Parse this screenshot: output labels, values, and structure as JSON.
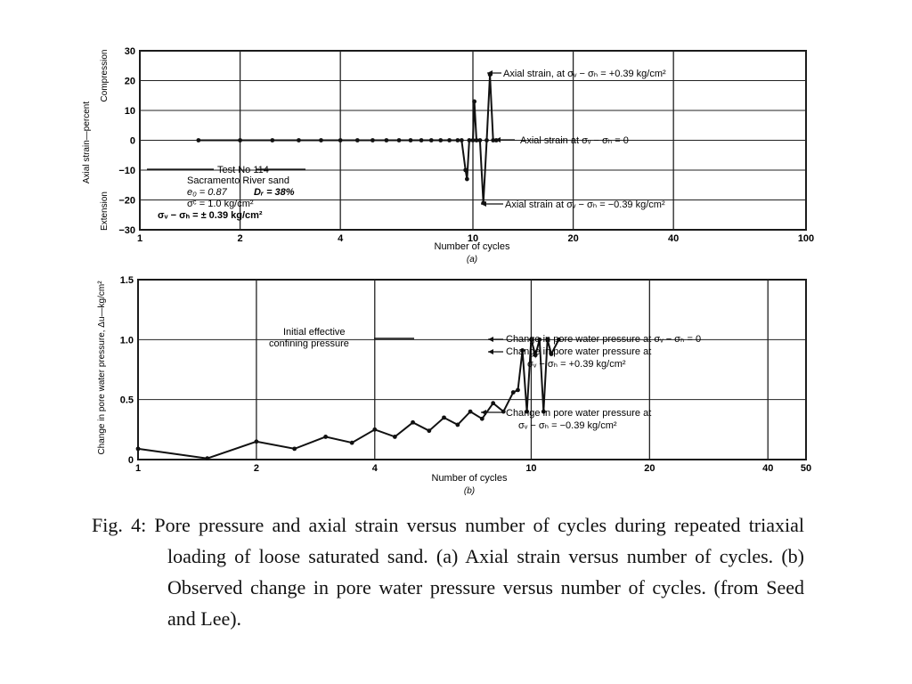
{
  "chart_data": [
    {
      "type": "scatter",
      "panel_label": "(a)",
      "xlabel": "Number of cycles",
      "ylabel": "Axial strain—percent",
      "ylabel_upper": "Compression",
      "ylabel_lower": "Extension",
      "x_scale": "log",
      "xlim": [
        1,
        100
      ],
      "ylim": [
        -30,
        30
      ],
      "x_ticks": [
        1,
        2,
        4,
        10,
        20,
        40,
        100
      ],
      "y_ticks": [
        30,
        20,
        10,
        0,
        -10,
        -20,
        -30
      ],
      "y_tick_labels": [
        "30",
        "20",
        "10",
        "0",
        "−10",
        "−20",
        "−30"
      ],
      "grid": true,
      "series": [
        {
          "name": "",
          "points": [
            [
              1.5,
              0
            ],
            [
              2,
              0
            ],
            [
              2.5,
              0
            ],
            [
              3,
              0
            ],
            [
              3.5,
              0
            ],
            [
              4,
              0
            ],
            [
              4.5,
              0
            ],
            [
              5,
              0
            ],
            [
              5.5,
              0
            ],
            [
              6,
              0
            ],
            [
              6.5,
              0
            ],
            [
              7,
              0
            ],
            [
              7.5,
              0
            ],
            [
              8,
              0
            ],
            [
              8.5,
              0
            ],
            [
              9,
              0
            ],
            [
              9.25,
              0
            ],
            [
              9.5,
              -10
            ],
            [
              9.6,
              -13
            ],
            [
              9.75,
              0
            ],
            [
              10,
              0
            ],
            [
              10.1,
              13
            ],
            [
              10.25,
              0
            ],
            [
              10.5,
              0
            ],
            [
              10.75,
              -21
            ],
            [
              11,
              0
            ],
            [
              11.25,
              22
            ],
            [
              11.5,
              0
            ],
            [
              11.75,
              0
            ]
          ]
        }
      ],
      "test_info": {
        "line1": "Test No 114",
        "line2": "Sacramento River sand",
        "line3a": "e₀ = 0.87",
        "line3b": "Dᵣ = 38%",
        "line4": "σ̄ᶜ = 1.0 kg/cm²",
        "line5": "σᵥ − σₕ = ± 0.39 kg/cm²"
      },
      "annotations": {
        "upper": "Axial strain, at σᵥ − σₕ = +0.39 kg/cm²",
        "middle": "Axial strain at σᵥ − σₕ = 0",
        "lower": "Axial strain at σᵥ − σₕ = −0.39 kg/cm²"
      }
    },
    {
      "type": "line",
      "panel_label": "(b)",
      "xlabel": "Number of cycles",
      "ylabel": "Change in pore water pressure, Δu—kg/cm²",
      "x_scale": "log",
      "xlim": [
        1,
        50
      ],
      "ylim": [
        0,
        1.5
      ],
      "x_ticks": [
        1,
        2,
        4,
        10,
        20,
        40,
        50
      ],
      "y_ticks": [
        0,
        0.5,
        1.0,
        1.5
      ],
      "y_tick_labels": [
        "0",
        "0.5",
        "1.0",
        "1.5"
      ],
      "grid": true,
      "series": [
        {
          "name": "",
          "points": [
            [
              1,
              0.09
            ],
            [
              1.5,
              0.01
            ],
            [
              2,
              0.15
            ],
            [
              2.5,
              0.09
            ],
            [
              3,
              0.19
            ],
            [
              3.5,
              0.14
            ],
            [
              4,
              0.25
            ],
            [
              4.5,
              0.19
            ],
            [
              5,
              0.31
            ],
            [
              5.5,
              0.24
            ],
            [
              6,
              0.35
            ],
            [
              6.5,
              0.29
            ],
            [
              7,
              0.4
            ],
            [
              7.5,
              0.34
            ],
            [
              8,
              0.47
            ],
            [
              8.5,
              0.4
            ],
            [
              9,
              0.56
            ],
            [
              9.25,
              0.58
            ],
            [
              9.5,
              0.91
            ],
            [
              9.75,
              0.4
            ],
            [
              10,
              1.0
            ],
            [
              10.25,
              0.87
            ],
            [
              10.5,
              1.0
            ],
            [
              10.75,
              0.4
            ],
            [
              11,
              1.0
            ],
            [
              11.25,
              0.88
            ],
            [
              11.75,
              1.0
            ]
          ]
        }
      ],
      "annotations": {
        "left_line1": "Initial effective",
        "left_line2": "confining pressure",
        "r1": "Change in pore water pressure at σᵥ − σₕ = 0",
        "r2a": "Change in pore water pressure at",
        "r2b": "σᵥ − σₕ = +0.39 kg/cm²",
        "r3a": "Change in pore water pressure at",
        "r3b": "σᵥ − σₕ = −0.39 kg/cm²"
      }
    }
  ],
  "caption": {
    "text": "Fig. 4: Pore pressure and axial strain versus number of cycles during repeated triaxial loading of loose saturated sand. (a) Axial strain versus number of cycles. (b) Observed change in pore water pressure versus number of cycles. (from Seed and Lee)."
  },
  "colors": {
    "ink": "#111111",
    "grid": "#222222",
    "background": "#ffffff"
  }
}
